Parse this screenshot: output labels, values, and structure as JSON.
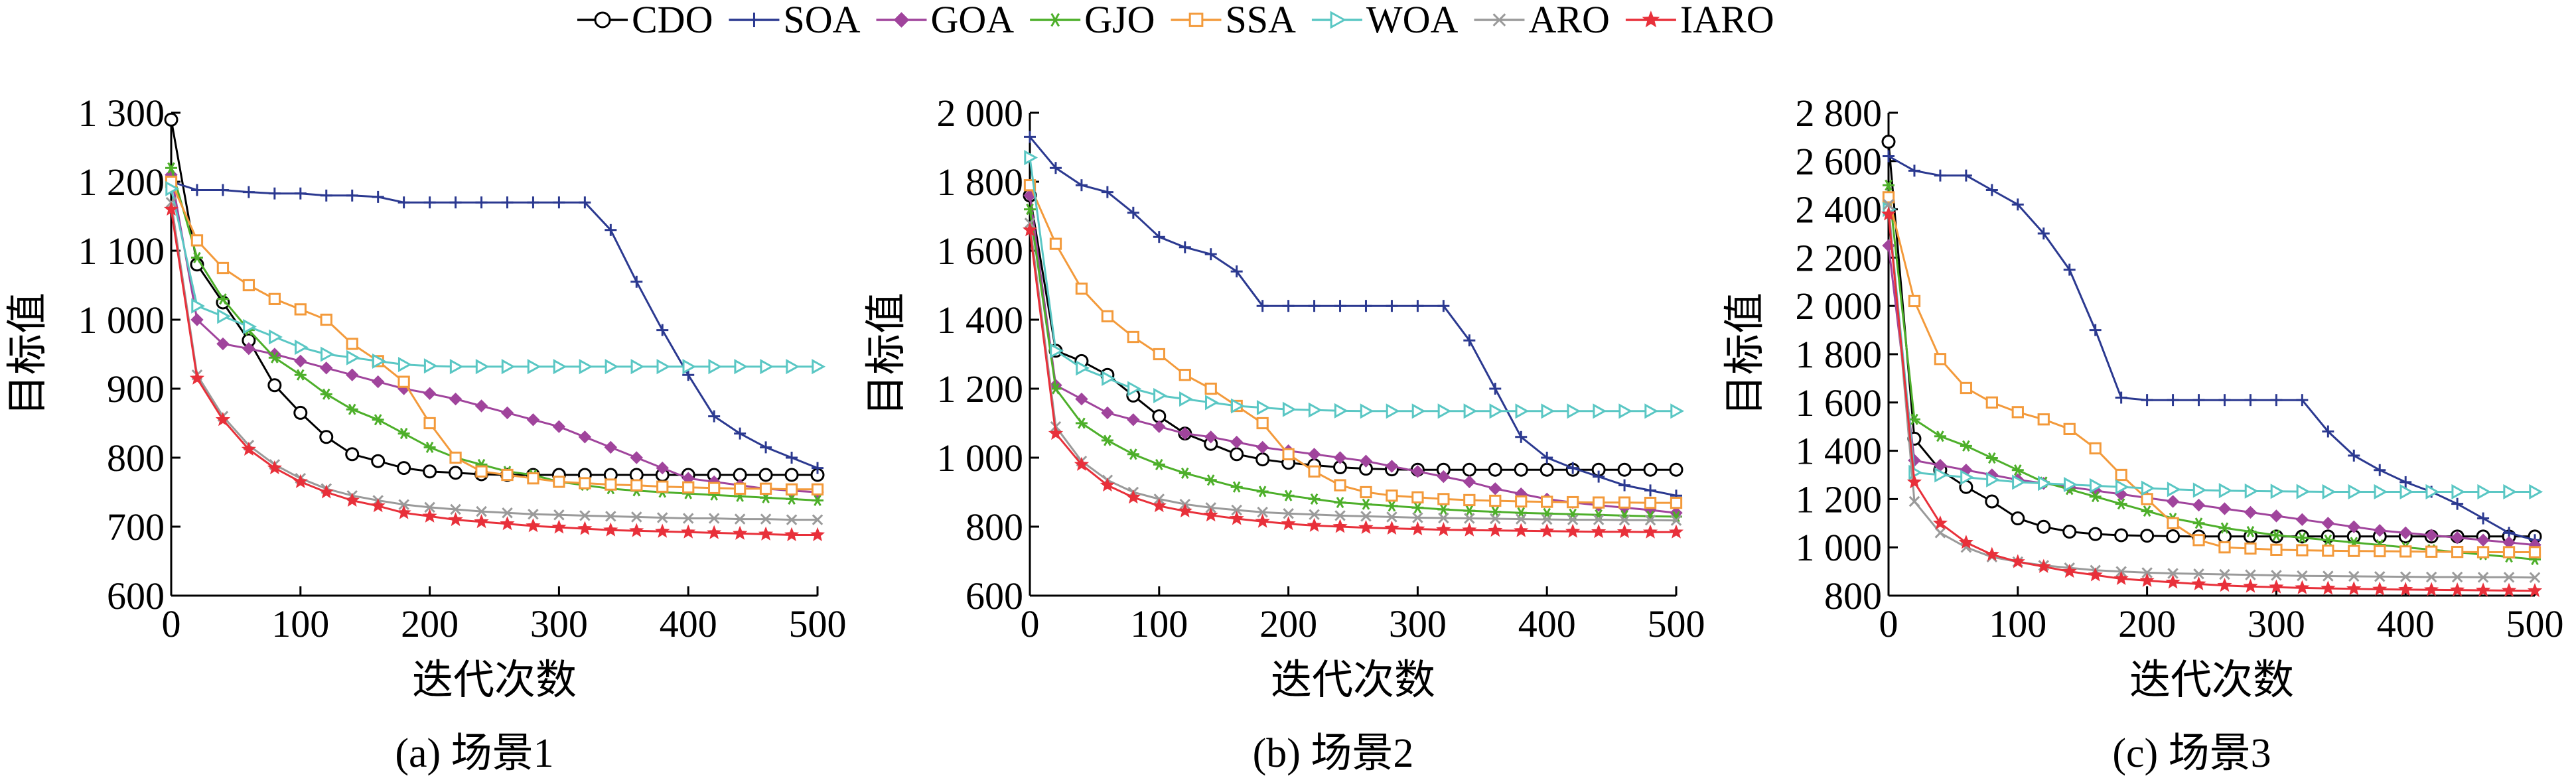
{
  "legend": [
    {
      "name": "CDO",
      "color": "#000000",
      "marker": "circle"
    },
    {
      "name": "SOA",
      "color": "#2b3990",
      "marker": "plus"
    },
    {
      "name": "GOA",
      "color": "#a0449c",
      "marker": "diamond"
    },
    {
      "name": "GJO",
      "color": "#4daf2a",
      "marker": "star6"
    },
    {
      "name": "SSA",
      "color": "#f39a3b",
      "marker": "square"
    },
    {
      "name": "WOA",
      "color": "#5ac7c4",
      "marker": "triangle-right"
    },
    {
      "name": "ARO",
      "color": "#9a9a9a",
      "marker": "x"
    },
    {
      "name": "IARO",
      "color": "#e8303a",
      "marker": "star5"
    }
  ],
  "chart_data": [
    {
      "type": "line",
      "caption": "(a) 场景1",
      "xlabel": "迭代次数",
      "ylabel": "目标值",
      "xlim": [
        0,
        500
      ],
      "ylim": [
        600,
        1300
      ],
      "xticks": [
        0,
        100,
        200,
        300,
        400,
        500
      ],
      "xtick_labels": [
        "0",
        "100",
        "200",
        "300",
        "400",
        "500"
      ],
      "yticks": [
        600,
        700,
        800,
        900,
        1000,
        1100,
        1200,
        1300
      ],
      "ytick_labels": [
        "600",
        "700",
        "800",
        "900",
        "1 000",
        "1 100",
        "1 200",
        "1 300"
      ],
      "x": [
        0,
        20,
        40,
        60,
        80,
        100,
        120,
        140,
        160,
        180,
        200,
        220,
        240,
        260,
        280,
        300,
        320,
        340,
        360,
        380,
        400,
        420,
        440,
        460,
        480,
        500
      ],
      "series": [
        {
          "name": "CDO",
          "values": [
            1290,
            1080,
            1025,
            970,
            905,
            865,
            830,
            805,
            795,
            785,
            780,
            778,
            776,
            775,
            775,
            775,
            775,
            775,
            775,
            775,
            775,
            775,
            775,
            775,
            775,
            775
          ]
        },
        {
          "name": "SOA",
          "values": [
            1200,
            1188,
            1188,
            1185,
            1183,
            1183,
            1180,
            1180,
            1178,
            1170,
            1170,
            1170,
            1170,
            1170,
            1170,
            1170,
            1170,
            1130,
            1055,
            985,
            920,
            860,
            835,
            815,
            800,
            785
          ]
        },
        {
          "name": "GOA",
          "values": [
            1210,
            1000,
            965,
            958,
            950,
            940,
            930,
            920,
            910,
            900,
            893,
            885,
            875,
            865,
            855,
            845,
            830,
            815,
            800,
            785,
            770,
            765,
            760,
            755,
            752,
            750
          ]
        },
        {
          "name": "GJO",
          "values": [
            1220,
            1090,
            1030,
            985,
            945,
            920,
            892,
            870,
            855,
            835,
            815,
            800,
            790,
            780,
            775,
            765,
            760,
            755,
            752,
            750,
            748,
            746,
            744,
            742,
            740,
            738
          ]
        },
        {
          "name": "SSA",
          "values": [
            1200,
            1115,
            1075,
            1050,
            1030,
            1015,
            1000,
            965,
            940,
            910,
            850,
            800,
            780,
            775,
            770,
            765,
            763,
            761,
            760,
            758,
            757,
            756,
            755,
            755,
            754,
            754
          ]
        },
        {
          "name": "WOA",
          "values": [
            1190,
            1020,
            1005,
            990,
            975,
            960,
            950,
            945,
            940,
            935,
            933,
            932,
            932,
            932,
            932,
            932,
            932,
            932,
            932,
            932,
            932,
            932,
            932,
            932,
            932,
            932
          ]
        },
        {
          "name": "ARO",
          "values": [
            1170,
            920,
            860,
            818,
            790,
            770,
            755,
            745,
            738,
            732,
            728,
            725,
            722,
            720,
            718,
            717,
            716,
            715,
            714,
            713,
            712,
            712,
            711,
            711,
            710,
            710
          ]
        },
        {
          "name": "IARO",
          "values": [
            1160,
            915,
            855,
            812,
            785,
            765,
            750,
            738,
            730,
            720,
            715,
            710,
            707,
            704,
            701,
            699,
            697,
            695,
            694,
            693,
            692,
            691,
            690,
            689,
            688,
            688
          ]
        }
      ]
    },
    {
      "type": "line",
      "caption": "(b) 场景2",
      "xlabel": "迭代次数",
      "ylabel": "目标值",
      "xlim": [
        0,
        500
      ],
      "ylim": [
        600,
        2000
      ],
      "xticks": [
        0,
        100,
        200,
        300,
        400,
        500
      ],
      "xtick_labels": [
        "0",
        "100",
        "200",
        "300",
        "400",
        "500"
      ],
      "yticks": [
        600,
        800,
        1000,
        1200,
        1400,
        1600,
        1800,
        2000
      ],
      "ytick_labels": [
        "600",
        "800",
        "1 000",
        "1 200",
        "1 400",
        "1 600",
        "1 800",
        "2 000"
      ],
      "x": [
        0,
        20,
        40,
        60,
        80,
        100,
        120,
        140,
        160,
        180,
        200,
        220,
        240,
        260,
        280,
        300,
        320,
        340,
        360,
        380,
        400,
        420,
        440,
        460,
        480,
        500
      ],
      "series": [
        {
          "name": "CDO",
          "values": [
            1760,
            1310,
            1280,
            1240,
            1180,
            1120,
            1070,
            1040,
            1010,
            995,
            985,
            978,
            972,
            968,
            966,
            965,
            965,
            965,
            965,
            965,
            965,
            965,
            965,
            965,
            965,
            965
          ]
        },
        {
          "name": "SOA",
          "values": [
            1930,
            1840,
            1790,
            1770,
            1710,
            1640,
            1610,
            1590,
            1540,
            1440,
            1440,
            1440,
            1440,
            1440,
            1440,
            1440,
            1440,
            1340,
            1200,
            1060,
            1000,
            970,
            945,
            920,
            905,
            890
          ]
        },
        {
          "name": "GOA",
          "values": [
            1760,
            1210,
            1170,
            1130,
            1110,
            1090,
            1070,
            1060,
            1045,
            1030,
            1020,
            1010,
            1000,
            990,
            975,
            960,
            945,
            930,
            910,
            895,
            880,
            870,
            862,
            855,
            848,
            840
          ]
        },
        {
          "name": "GJO",
          "values": [
            1720,
            1200,
            1100,
            1050,
            1010,
            980,
            955,
            935,
            915,
            902,
            890,
            880,
            870,
            865,
            860,
            855,
            850,
            846,
            843,
            840,
            838,
            836,
            834,
            832,
            830,
            829
          ]
        },
        {
          "name": "SSA",
          "values": [
            1790,
            1620,
            1490,
            1410,
            1350,
            1300,
            1240,
            1200,
            1150,
            1100,
            1010,
            960,
            920,
            900,
            890,
            885,
            880,
            877,
            875,
            873,
            872,
            871,
            870,
            870,
            869,
            869
          ]
        },
        {
          "name": "WOA",
          "values": [
            1870,
            1310,
            1260,
            1230,
            1200,
            1180,
            1170,
            1160,
            1150,
            1145,
            1140,
            1138,
            1136,
            1135,
            1135,
            1135,
            1135,
            1135,
            1135,
            1135,
            1135,
            1135,
            1135,
            1135,
            1135,
            1135
          ]
        },
        {
          "name": "ARO",
          "values": [
            1680,
            1090,
            990,
            935,
            900,
            880,
            865,
            855,
            848,
            842,
            838,
            835,
            832,
            830,
            828,
            826,
            825,
            824,
            823,
            822,
            821,
            820,
            820,
            819,
            819,
            818
          ]
        },
        {
          "name": "IARO",
          "values": [
            1660,
            1070,
            980,
            920,
            885,
            860,
            845,
            833,
            823,
            815,
            808,
            803,
            800,
            797,
            795,
            793,
            791,
            790,
            789,
            788,
            787,
            786,
            785,
            785,
            784,
            784
          ]
        }
      ]
    },
    {
      "type": "line",
      "caption": "(c) 场景3",
      "xlabel": "迭代次数",
      "ylabel": "目标值",
      "xlim": [
        0,
        500
      ],
      "ylim": [
        800,
        2800
      ],
      "xticks": [
        0,
        100,
        200,
        300,
        400,
        500
      ],
      "xtick_labels": [
        "0",
        "100",
        "200",
        "300",
        "400",
        "500"
      ],
      "yticks": [
        800,
        1000,
        1200,
        1400,
        1600,
        1800,
        2000,
        2200,
        2400,
        2600,
        2800
      ],
      "ytick_labels": [
        "800",
        "1 000",
        "1 200",
        "1 400",
        "1 600",
        "1 800",
        "2 000",
        "2 200",
        "2 400",
        "2 600",
        "2 800"
      ],
      "x": [
        0,
        20,
        40,
        60,
        80,
        100,
        120,
        140,
        160,
        180,
        200,
        220,
        240,
        260,
        280,
        300,
        320,
        340,
        360,
        380,
        400,
        420,
        440,
        460,
        480,
        500
      ],
      "series": [
        {
          "name": "CDO",
          "values": [
            2680,
            1450,
            1320,
            1250,
            1190,
            1120,
            1085,
            1065,
            1055,
            1050,
            1048,
            1046,
            1045,
            1045,
            1045,
            1045,
            1045,
            1045,
            1045,
            1045,
            1045,
            1045,
            1045,
            1045,
            1045,
            1045
          ]
        },
        {
          "name": "SOA",
          "values": [
            2620,
            2560,
            2540,
            2540,
            2480,
            2420,
            2300,
            2150,
            1900,
            1620,
            1610,
            1610,
            1610,
            1610,
            1610,
            1610,
            1610,
            1480,
            1380,
            1320,
            1270,
            1230,
            1180,
            1120,
            1060,
            1030
          ]
        },
        {
          "name": "GOA",
          "values": [
            2250,
            1360,
            1340,
            1320,
            1300,
            1280,
            1265,
            1250,
            1235,
            1220,
            1205,
            1190,
            1175,
            1160,
            1145,
            1130,
            1115,
            1100,
            1085,
            1070,
            1060,
            1050,
            1040,
            1030,
            1020,
            1010
          ]
        },
        {
          "name": "GJO",
          "values": [
            2500,
            1530,
            1460,
            1420,
            1370,
            1320,
            1270,
            1240,
            1210,
            1180,
            1150,
            1120,
            1100,
            1080,
            1065,
            1050,
            1040,
            1030,
            1020,
            1010,
            1000,
            990,
            980,
            970,
            960,
            950
          ]
        },
        {
          "name": "SSA",
          "values": [
            2450,
            2020,
            1780,
            1660,
            1600,
            1560,
            1530,
            1490,
            1410,
            1300,
            1200,
            1100,
            1030,
            1000,
            995,
            990,
            988,
            986,
            985,
            984,
            983,
            982,
            981,
            980,
            980,
            980
          ]
        },
        {
          "name": "WOA",
          "values": [
            2400,
            1310,
            1300,
            1290,
            1280,
            1270,
            1265,
            1260,
            1255,
            1250,
            1245,
            1240,
            1237,
            1235,
            1233,
            1232,
            1231,
            1230,
            1230,
            1230,
            1230,
            1230,
            1230,
            1230,
            1230,
            1230
          ]
        },
        {
          "name": "ARO",
          "values": [
            2420,
            1190,
            1060,
            1000,
            960,
            940,
            925,
            915,
            905,
            900,
            895,
            892,
            890,
            888,
            886,
            884,
            882,
            881,
            880,
            879,
            878,
            877,
            877,
            876,
            876,
            875
          ]
        },
        {
          "name": "IARO",
          "values": [
            2380,
            1270,
            1100,
            1020,
            970,
            940,
            920,
            900,
            885,
            870,
            862,
            855,
            848,
            842,
            838,
            835,
            832,
            830,
            828,
            826,
            825,
            824,
            823,
            822,
            821,
            820
          ]
        }
      ]
    }
  ]
}
